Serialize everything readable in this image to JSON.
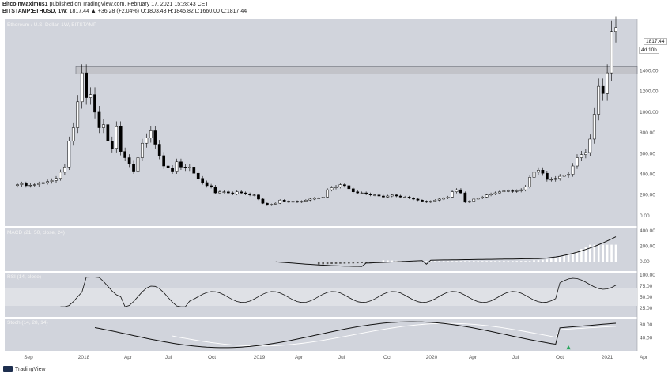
{
  "header": {
    "line1_user": "BitcoinMaximus1",
    "line1_rest": " published on TradingView.com, February 17, 2021 15:28:43 CET",
    "line2_symbol": "BITSTAMP:ETHUSD, 1W",
    "line2_values": "1817.44 ▲ +36.28 (+2.04%) O:1803.43 H:1845.82 L:1660.00 C:1817.44"
  },
  "panes": {
    "price_label": "Ethereum / U.S. Dollar, 1W, BITSTAMP",
    "macd_label": "MACD (21, 50, close, 24)",
    "rsi_label": "RSI (14, close)",
    "stoch_label": "Stoch (14, 28, 14)"
  },
  "price_tag": "1817.44",
  "time_tag": "4d 10h",
  "footer": {
    "brand": "TradingView"
  },
  "colors": {
    "background": "#d1d4dc",
    "candle_up": "#ffffff",
    "candle_down": "#000000",
    "resistance_box": "#bfbfc6",
    "signal_arrow": "#26a65b"
  },
  "chart_data": [
    {
      "type": "candlestick",
      "title": "Ethereum / U.S. Dollar, 1W, BITSTAMP",
      "x_ticks": [
        "Sep",
        "2018",
        "Apr",
        "Jul",
        "Oct",
        "2019",
        "Apr",
        "Jul",
        "Oct",
        "2020",
        "Apr",
        "Jul",
        "Oct",
        "2021",
        "Apr"
      ],
      "y_ticks": [
        0,
        200,
        400,
        600,
        800,
        1000,
        1200,
        1400,
        1600,
        1817.44
      ],
      "ylim": [
        -100,
        1900
      ],
      "resistance_zone": [
        1370,
        1440
      ],
      "approx_closes_weekly_from_aug_2017": [
        300,
        310,
        290,
        295,
        300,
        310,
        320,
        330,
        340,
        360,
        420,
        470,
        720,
        850,
        1100,
        1380,
        1140,
        1170,
        1000,
        850,
        880,
        720,
        650,
        860,
        620,
        560,
        500,
        430,
        560,
        700,
        750,
        820,
        690,
        580,
        480,
        460,
        430,
        520,
        470,
        460,
        470,
        410,
        360,
        320,
        290,
        280,
        220,
        230,
        230,
        220,
        210,
        230,
        220,
        210,
        200,
        200,
        160,
        120,
        100,
        110,
        120,
        150,
        140,
        130,
        140,
        130,
        140,
        150,
        160,
        170,
        170,
        180,
        250,
        270,
        280,
        300,
        290,
        260,
        230,
        220,
        220,
        210,
        200,
        200,
        190,
        180,
        190,
        200,
        190,
        180,
        180,
        170,
        160,
        150,
        140,
        130,
        140,
        150,
        160,
        170,
        180,
        230,
        250,
        220,
        130,
        140,
        160,
        170,
        180,
        200,
        210,
        220,
        230,
        240,
        240,
        235,
        240,
        250,
        280,
        370,
        420,
        440,
        410,
        350,
        350,
        360,
        380,
        390,
        400,
        480,
        560,
        590,
        610,
        740,
        980,
        1250,
        1180,
        1380,
        1780,
        1817.44
      ]
    },
    {
      "type": "macd",
      "title": "MACD (21, 50, close, 24)",
      "y_ticks": [
        0,
        200,
        400
      ],
      "ylim": [
        -120,
        440
      ]
    },
    {
      "type": "line",
      "title": "RSI (14, close)",
      "y_ticks": [
        25,
        50,
        75,
        100
      ],
      "ylim": [
        5,
        105
      ],
      "band": [
        30,
        70
      ]
    },
    {
      "type": "line",
      "title": "Stoch (14, 28, 14)",
      "y_ticks": [
        40,
        80
      ],
      "ylim": [
        0,
        100
      ]
    }
  ]
}
